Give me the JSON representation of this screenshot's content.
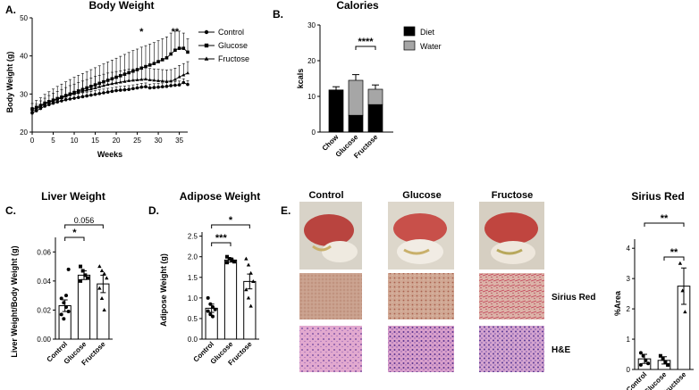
{
  "panels": {
    "A": {
      "letter": "A."
    },
    "B": {
      "letter": "B."
    },
    "C": {
      "letter": "C."
    },
    "D": {
      "letter": "D."
    },
    "E": {
      "letter": "E."
    }
  },
  "micrograph": {
    "columns": [
      "Control",
      "Glucose",
      "Fructose"
    ],
    "rows": [
      "Sirius Red",
      "H&E"
    ]
  },
  "colors": {
    "black": "#000000",
    "gray": "#a6a6a6",
    "liver_tissue": "#b9443f",
    "sirius_bg": "#caa08b",
    "he_bg": "#dca3c8"
  },
  "chart_data": [
    {
      "id": "body-weight",
      "type": "line",
      "title": "Body Weight",
      "xlabel": "Weeks",
      "ylabel": "Body Weight (g)",
      "xlim": [
        0,
        37
      ],
      "ylim": [
        20,
        50
      ],
      "xticks": [
        0,
        5,
        10,
        15,
        20,
        25,
        30,
        35
      ],
      "yticks": [
        20,
        30,
        40,
        50
      ],
      "legend": "top-right",
      "x": [
        0,
        1,
        2,
        3,
        4,
        5,
        6,
        7,
        8,
        9,
        10,
        11,
        12,
        13,
        14,
        15,
        16,
        17,
        18,
        19,
        20,
        21,
        22,
        23,
        24,
        25,
        26,
        27,
        28,
        29,
        30,
        31,
        32,
        33,
        34,
        35,
        36,
        37
      ],
      "series": [
        {
          "name": "Control",
          "marker": "circle",
          "values": [
            25.0,
            25.6,
            26.2,
            26.8,
            27.2,
            27.6,
            27.9,
            28.2,
            28.5,
            28.7,
            28.9,
            29.1,
            29.3,
            29.5,
            29.7,
            29.9,
            30.1,
            30.3,
            30.5,
            30.7,
            30.9,
            31.0,
            31.1,
            31.2,
            31.4,
            31.6,
            31.8,
            31.9,
            31.6,
            31.7,
            31.8,
            31.9,
            32.0,
            32.2,
            32.3,
            32.4,
            33.0,
            32.5
          ],
          "err": [
            1.0,
            1.0,
            1.0,
            1.0,
            1.0,
            1.0,
            1.0,
            1.0,
            1.0,
            1.0,
            1.0,
            1.0,
            1.0,
            1.0,
            1.0,
            1.0,
            1.0,
            1.0,
            1.0,
            1.0,
            1.0,
            1.0,
            1.0,
            1.0,
            1.0,
            1.0,
            1.0,
            1.0,
            1.0,
            1.0,
            1.0,
            1.0,
            1.0,
            1.0,
            1.0,
            1.0,
            1.0,
            1.0
          ]
        },
        {
          "name": "Glucose",
          "marker": "square",
          "values": [
            26.0,
            26.5,
            27.0,
            27.6,
            28.0,
            28.4,
            28.8,
            29.2,
            29.6,
            30.0,
            30.4,
            30.8,
            31.2,
            31.6,
            32.0,
            32.4,
            32.8,
            33.2,
            33.6,
            34.0,
            34.4,
            34.8,
            35.2,
            35.6,
            36.0,
            36.4,
            36.8,
            37.2,
            37.6,
            38.0,
            38.5,
            39.0,
            39.5,
            40.5,
            41.5,
            42.0,
            42.0,
            41.0
          ],
          "err": [
            1.5,
            1.8,
            2.0,
            2.3,
            2.6,
            2.9,
            3.2,
            3.4,
            3.6,
            3.8,
            4.0,
            4.1,
            4.2,
            4.3,
            4.4,
            4.5,
            4.6,
            4.7,
            4.8,
            4.9,
            5.0,
            5.1,
            5.2,
            5.3,
            5.4,
            5.4,
            5.5,
            5.5,
            5.5,
            5.5,
            5.5,
            5.5,
            5.5,
            5.5,
            5.0,
            4.5,
            4.0,
            3.5
          ]
        },
        {
          "name": "Fructose",
          "marker": "triangle",
          "values": [
            25.5,
            26.1,
            26.8,
            27.3,
            27.8,
            28.2,
            28.6,
            29.0,
            29.4,
            29.8,
            30.1,
            30.4,
            30.7,
            31.0,
            31.3,
            31.6,
            31.9,
            32.2,
            32.5,
            32.7,
            32.9,
            33.1,
            33.3,
            33.5,
            33.6,
            33.7,
            33.8,
            33.9,
            33.7,
            33.6,
            33.5,
            33.4,
            33.3,
            33.4,
            33.8,
            34.5,
            35.0,
            35.5
          ],
          "err": [
            1.0,
            1.2,
            1.4,
            1.6,
            1.8,
            2.0,
            2.1,
            2.2,
            2.3,
            2.4,
            2.5,
            2.6,
            2.7,
            2.8,
            2.9,
            3.0,
            3.0,
            3.0,
            3.0,
            3.0,
            3.0,
            3.0,
            3.0,
            3.0,
            3.0,
            3.0,
            3.0,
            3.0,
            3.0,
            3.0,
            3.0,
            3.0,
            3.0,
            3.0,
            3.0,
            3.0,
            3.0,
            3.0
          ]
        }
      ],
      "annotations": [
        {
          "text": "*",
          "x": 26
        },
        {
          "text": "**",
          "x": 34
        }
      ]
    },
    {
      "id": "calories",
      "type": "bar",
      "stacked": true,
      "title": "Calories",
      "ylabel": "kcals",
      "ylim": [
        0,
        30
      ],
      "yticks": [
        0,
        10,
        20,
        30
      ],
      "categories": [
        "Chow",
        "Glucose",
        "Fructose"
      ],
      "legend": "top-right",
      "series": [
        {
          "name": "Diet",
          "values": [
            11.8,
            4.7,
            7.7
          ],
          "err": [
            0.9,
            0.5,
            0.7
          ]
        },
        {
          "name": "Water",
          "values": [
            0,
            9.8,
            4.3
          ],
          "err": [
            0,
            1.6,
            1.2
          ]
        }
      ],
      "annotations": [
        {
          "text": "****",
          "between": [
            "Glucose",
            "Fructose"
          ]
        }
      ]
    },
    {
      "id": "liver-weight",
      "type": "bar",
      "title": "Liver Weight",
      "ylabel": "Liver Weight/Body Weight (g)",
      "ylim": [
        0,
        0.07
      ],
      "yticks": [
        0.0,
        0.02,
        0.04,
        0.06
      ],
      "ytick_labels": [
        "0.00",
        "0.02",
        "0.04",
        "0.06"
      ],
      "categories": [
        "Control",
        "Glucose",
        "Fructose"
      ],
      "values": [
        0.023,
        0.044,
        0.038
      ],
      "err": [
        0.004,
        0.003,
        0.006
      ],
      "points": [
        [
          0.028,
          0.025,
          0.022,
          0.019,
          0.017,
          0.014,
          0.03,
          0.048
        ],
        [
          0.05,
          0.047,
          0.044,
          0.042,
          0.04
        ],
        [
          0.05,
          0.047,
          0.045,
          0.042,
          0.035,
          0.028,
          0.02
        ]
      ],
      "markers": [
        "circle",
        "square",
        "triangle"
      ],
      "annotations": [
        {
          "text": "*",
          "between": [
            "Control",
            "Glucose"
          ]
        },
        {
          "text": "0.056",
          "between": [
            "Control",
            "Fructose"
          ]
        }
      ]
    },
    {
      "id": "adipose-weight",
      "type": "bar",
      "title": "Adipose Weight",
      "ylabel": "Adipose Weight (g)",
      "ylim": [
        0,
        2.6
      ],
      "yticks": [
        0.0,
        0.5,
        1.0,
        1.5,
        2.0,
        2.5
      ],
      "ytick_labels": [
        "0.0",
        "0.5",
        "1.0",
        "1.5",
        "2.0",
        "2.5"
      ],
      "categories": [
        "Control",
        "Glucose",
        "Fructose"
      ],
      "values": [
        0.75,
        1.92,
        1.4
      ],
      "err": [
        0.1,
        0.05,
        0.18
      ],
      "points": [
        [
          1.0,
          0.85,
          0.78,
          0.72,
          0.68,
          0.6,
          0.55
        ],
        [
          2.0,
          1.95,
          1.92,
          1.88,
          1.86
        ],
        [
          1.95,
          1.8,
          1.6,
          1.4,
          1.2,
          1.0,
          0.8
        ]
      ],
      "markers": [
        "circle",
        "square",
        "triangle"
      ],
      "annotations": [
        {
          "text": "***",
          "between": [
            "Control",
            "Glucose"
          ]
        },
        {
          "text": "*",
          "between": [
            "Control",
            "Fructose"
          ]
        }
      ]
    },
    {
      "id": "sirius-red",
      "type": "bar",
      "title": "Sirius Red",
      "ylabel": "%Area",
      "ylim": [
        0,
        4.3
      ],
      "yticks": [
        0,
        1,
        2,
        3,
        4
      ],
      "categories": [
        "Control",
        "Glucose",
        "Fructose"
      ],
      "values": [
        0.35,
        0.3,
        2.75
      ],
      "err": [
        0.15,
        0.12,
        0.6
      ],
      "points": [
        [
          0.55,
          0.45,
          0.3,
          0.2,
          0.15
        ],
        [
          0.45,
          0.35,
          0.25,
          0.15
        ],
        [
          3.5,
          2.6,
          1.9
        ]
      ],
      "markers": [
        "circle",
        "square",
        "triangle"
      ],
      "annotations": [
        {
          "text": "**",
          "between": [
            "Glucose",
            "Fructose"
          ]
        },
        {
          "text": "**",
          "between": [
            "Control",
            "Fructose"
          ]
        }
      ]
    }
  ]
}
